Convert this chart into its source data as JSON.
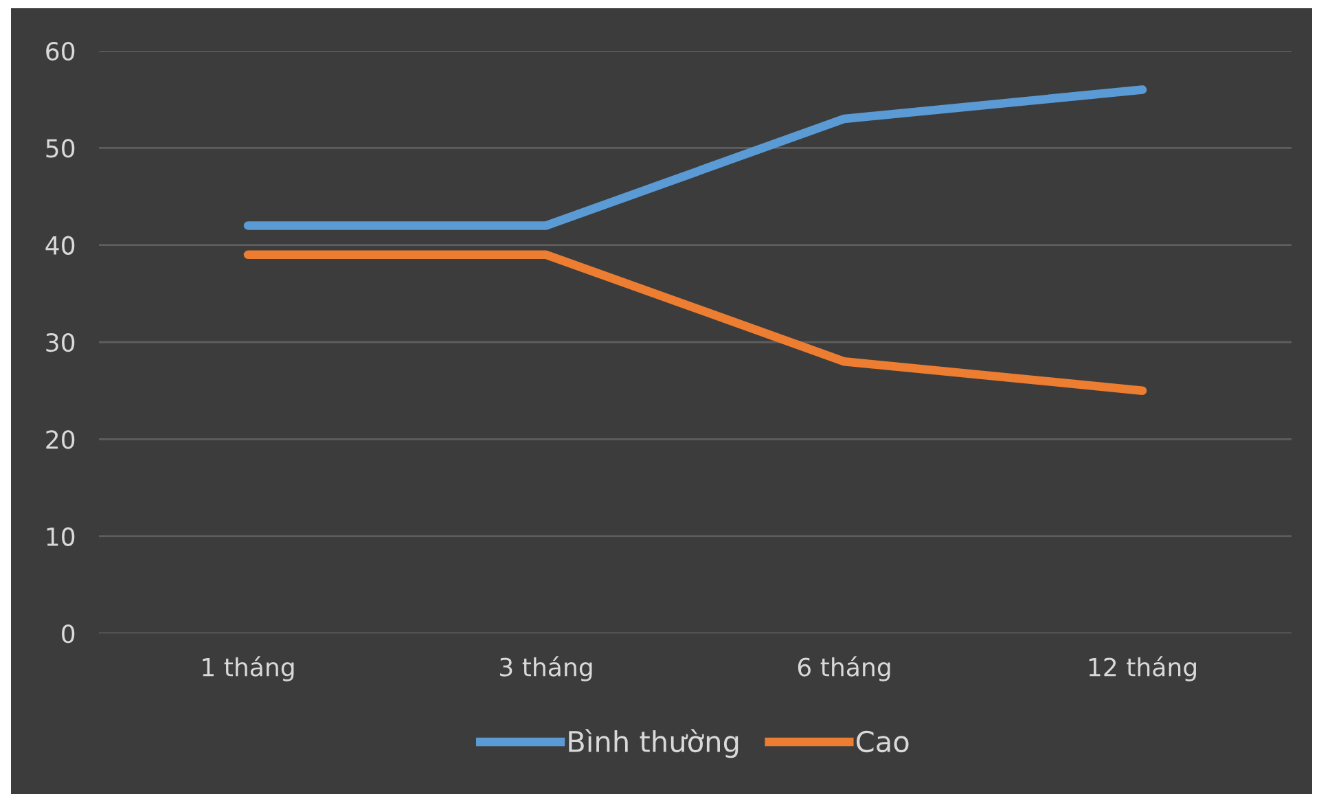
{
  "chart_data": {
    "type": "line",
    "categories": [
      "1 tháng",
      "3 tháng",
      "6 tháng",
      "12 tháng"
    ],
    "series": [
      {
        "name": "Bình thường",
        "color": "#5b9bd5",
        "values": [
          42,
          42,
          53,
          56
        ]
      },
      {
        "name": "Cao",
        "color": "#ed7d31",
        "values": [
          39,
          39,
          28,
          25
        ]
      }
    ],
    "ylim": [
      0,
      60
    ],
    "yticks": [
      0,
      10,
      20,
      30,
      40,
      50,
      60
    ],
    "grid": "y",
    "legend": "bottom",
    "marker": "none",
    "line_style": "solid"
  }
}
